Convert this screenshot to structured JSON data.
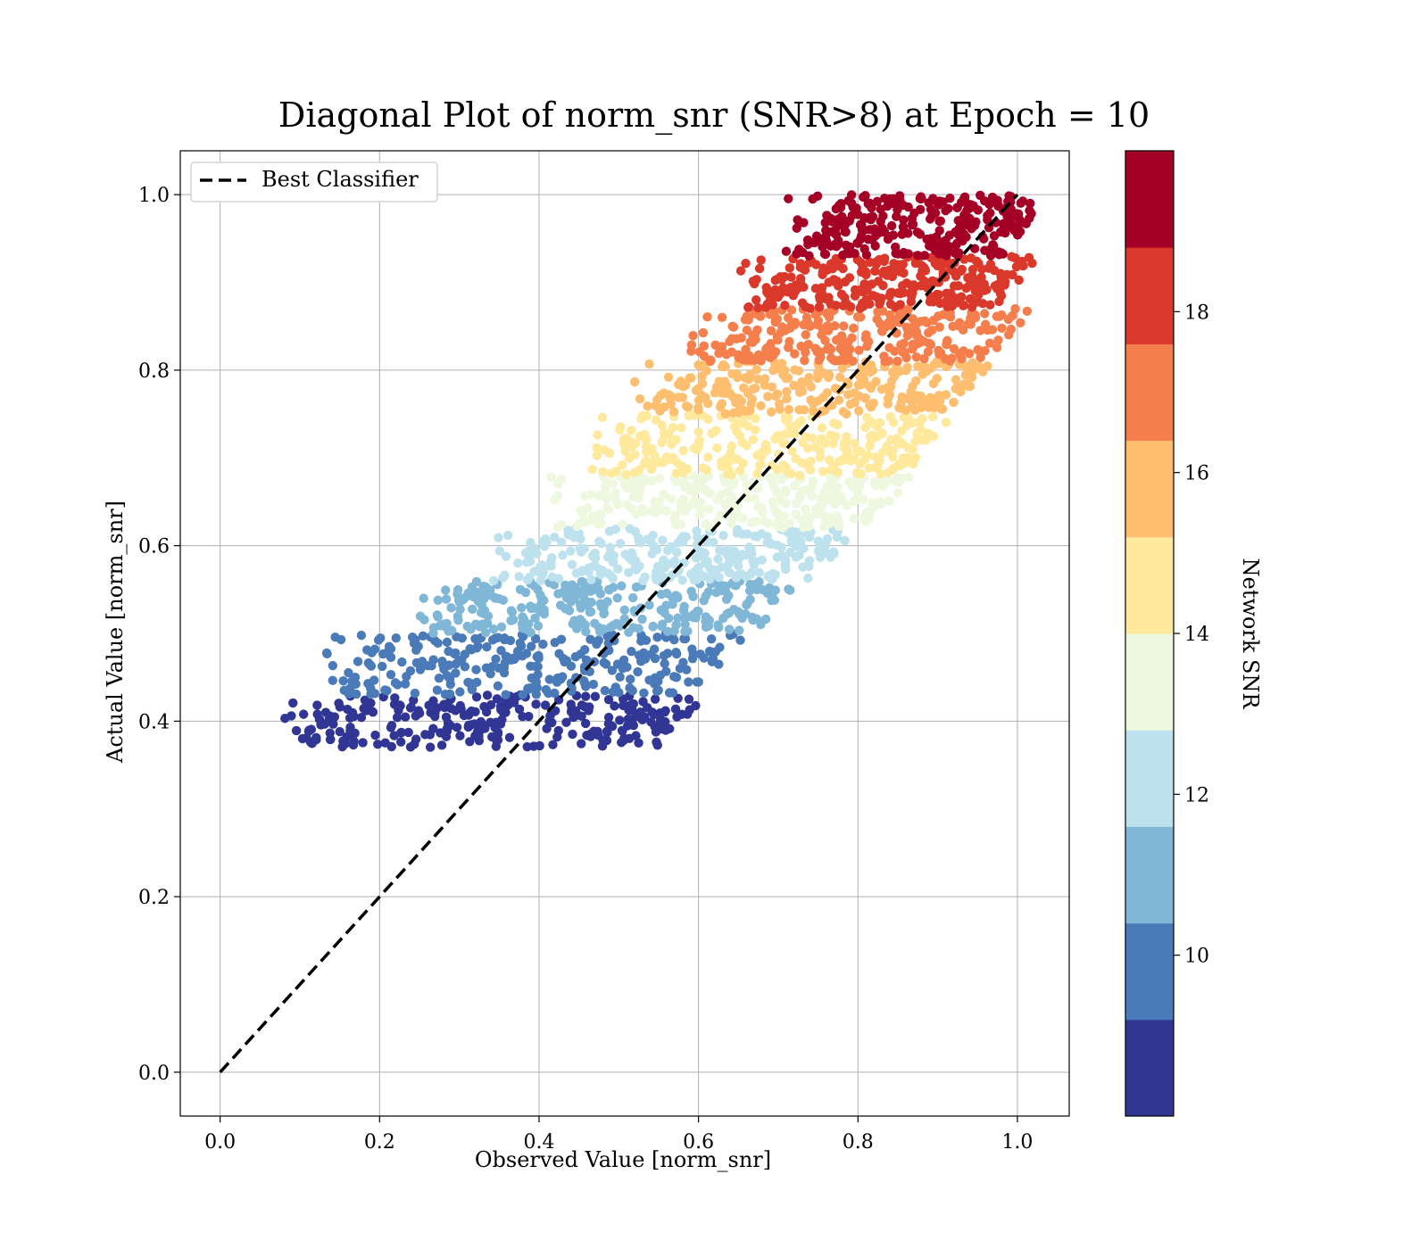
{
  "chart_data": {
    "type": "scatter",
    "title": "Diagonal Plot of norm_snr (SNR>8) at Epoch = 10",
    "xlabel": "Observed Value [norm_snr]",
    "ylabel": "Actual Value [norm_snr]",
    "xlim": [
      -0.05,
      1.065
    ],
    "ylim": [
      -0.05,
      1.05
    ],
    "xticks": [
      "0.0",
      "0.2",
      "0.4",
      "0.6",
      "0.8",
      "1.0"
    ],
    "xtick_values": [
      0.0,
      0.2,
      0.4,
      0.6,
      0.8,
      1.0
    ],
    "yticks": [
      "0.0",
      "0.2",
      "0.4",
      "0.6",
      "0.8",
      "1.0"
    ],
    "ytick_values": [
      0.0,
      0.2,
      0.4,
      0.6,
      0.8,
      1.0
    ],
    "grid": true,
    "legend": {
      "label": "Best Classifier",
      "placement": "upper left"
    },
    "reference_line": {
      "label": "Best Classifier",
      "x": [
        0.0,
        1.0
      ],
      "y": [
        0.0,
        1.0
      ],
      "style": "dashed",
      "color": "#000000"
    },
    "colorbar": {
      "label": "Network SNR",
      "range": [
        8,
        20
      ],
      "ticks": [
        "10",
        "12",
        "14",
        "16",
        "18"
      ],
      "tick_values": [
        10,
        12,
        14,
        16,
        18
      ],
      "bins": [
        {
          "from": 8,
          "to": 9.2,
          "color": "#313695"
        },
        {
          "from": 9.2,
          "to": 10.4,
          "color": "#4a7ab7"
        },
        {
          "from": 10.4,
          "to": 11.6,
          "color": "#80b6d6"
        },
        {
          "from": 11.6,
          "to": 12.8,
          "color": "#bde2ee"
        },
        {
          "from": 12.8,
          "to": 14.0,
          "color": "#eef8df"
        },
        {
          "from": 14.0,
          "to": 15.2,
          "color": "#fee99d"
        },
        {
          "from": 15.2,
          "to": 16.4,
          "color": "#fdbe70"
        },
        {
          "from": 16.4,
          "to": 17.6,
          "color": "#f47e4c"
        },
        {
          "from": 17.6,
          "to": 18.8,
          "color": "#da382a"
        },
        {
          "from": 18.8,
          "to": 20.0,
          "color": "#a50026"
        }
      ]
    },
    "scatter_bands": [
      {
        "snr_bin": 1,
        "color": "#313695",
        "y_range": [
          0.37,
          0.43
        ],
        "x_range": [
          0.12,
          0.58
        ]
      },
      {
        "snr_bin": 2,
        "color": "#4a7ab7",
        "y_range": [
          0.43,
          0.5
        ],
        "x_range": [
          0.17,
          0.63
        ]
      },
      {
        "snr_bin": 3,
        "color": "#80b6d6",
        "y_range": [
          0.5,
          0.56
        ],
        "x_range": [
          0.29,
          0.7
        ]
      },
      {
        "snr_bin": 4,
        "color": "#bde2ee",
        "y_range": [
          0.56,
          0.62
        ],
        "x_range": [
          0.38,
          0.77
        ]
      },
      {
        "snr_bin": 5,
        "color": "#eef8df",
        "y_range": [
          0.62,
          0.68
        ],
        "x_range": [
          0.45,
          0.84
        ]
      },
      {
        "snr_bin": 6,
        "color": "#fee99d",
        "y_range": [
          0.68,
          0.75
        ],
        "x_range": [
          0.5,
          0.89
        ]
      },
      {
        "snr_bin": 7,
        "color": "#fdbe70",
        "y_range": [
          0.75,
          0.81
        ],
        "x_range": [
          0.56,
          0.94
        ]
      },
      {
        "snr_bin": 8,
        "color": "#f47e4c",
        "y_range": [
          0.81,
          0.87
        ],
        "x_range": [
          0.63,
          0.99
        ]
      },
      {
        "snr_bin": 9,
        "color": "#da382a",
        "y_range": [
          0.87,
          0.93
        ],
        "x_range": [
          0.69,
          1.0
        ]
      },
      {
        "snr_bin": 10,
        "color": "#a50026",
        "y_range": [
          0.93,
          1.0
        ],
        "x_range": [
          0.75,
          1.01
        ]
      }
    ]
  }
}
